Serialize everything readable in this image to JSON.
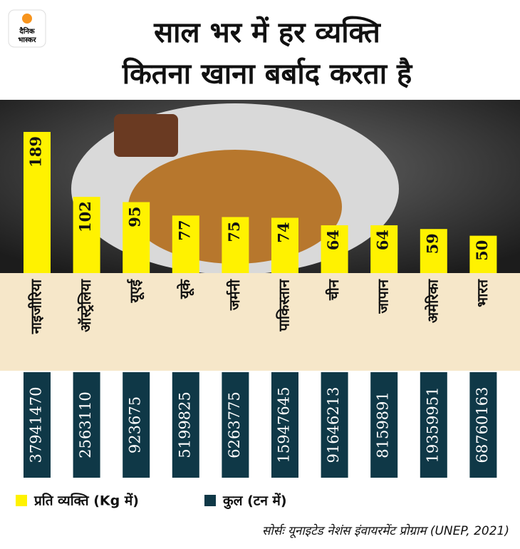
{
  "chart_data": {
    "type": "bar",
    "logo": [
      "दैनिक",
      "भास्कर"
    ],
    "title": [
      "साल भर में हर व्यक्ति",
      "कितना खाना बर्बाद करता है"
    ],
    "categories": [
      "नाइजीरिया",
      "ऑस्ट्रेलिया",
      "यूएई",
      "यूके",
      "जर्मनी",
      "पाकिस्तान",
      "चीन",
      "जापान",
      "अमेरिका",
      "भारत"
    ],
    "series": [
      {
        "name": "प्रति व्यक्ति (Kg में)",
        "color": "#fff200",
        "values": [
          189,
          102,
          95,
          77,
          75,
          74,
          64,
          64,
          59,
          50
        ]
      },
      {
        "name": "कुल (टन में)",
        "color": "#0f3847",
        "values": [
          37941470,
          2563110,
          923675,
          5199825,
          6263775,
          15947645,
          91646213,
          8159891,
          19359951,
          68760163
        ]
      }
    ],
    "source": "सोर्सः यूनाइटेड नेशंस इंवायरमेंट प्रोग्राम (UNEP, 2021)"
  }
}
